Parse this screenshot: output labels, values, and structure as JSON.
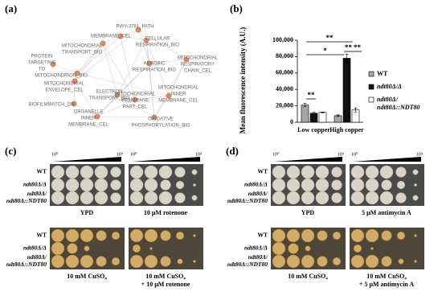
{
  "panel_a": {
    "label": "(a)",
    "nodes": [
      {
        "lines": [
          "PWY-3781_PATH"
        ]
      },
      {
        "lines": [
          "MEMBRANE_CEL"
        ]
      },
      {
        "lines": [
          "CELLULAR",
          "RESPIRATION_BIO"
        ]
      },
      {
        "lines": [
          "MITOCHONDRIAL",
          "TRANSPORT_BIO"
        ]
      },
      {
        "lines": [
          "PROTEIN",
          "TARGETING",
          "TO"
        ]
      },
      {
        "lines": [
          "MITOCHONDRION_BIO"
        ]
      },
      {
        "lines": [
          "AEROBIC",
          "RESPIRATION_BIO"
        ]
      },
      {
        "lines": [
          "MITOCHONDRIAL",
          "RESPIRATORY",
          "CHAIN_CEL"
        ]
      },
      {
        "lines": [
          "ELECTRON",
          "TRANSPORT_BIO"
        ]
      },
      {
        "lines": [
          "MITOCHONDRIAL",
          "ENVELOPE_CEL"
        ]
      },
      {
        "lines": [
          "BIOFILMMATCH_DN"
        ]
      },
      {
        "lines": [
          "MITOCHONDRIAL",
          "MEMBRANE",
          "PART_CEL"
        ]
      },
      {
        "lines": [
          "MITOCHONDRIAL",
          "INNER",
          "MEMBRANE_CEL"
        ]
      },
      {
        "lines": [
          "ORGANELLE",
          "INNER",
          "MEMBRANE_CEL"
        ]
      },
      {
        "lines": [
          "OXIDATIVE",
          "PHOSPHORYLATION_BIO"
        ]
      }
    ]
  },
  "chart_data": {
    "type": "bar",
    "panel_label": "(b)",
    "y_label": "Mean fluorescence intensity (A.U.)",
    "categories": [
      "Low copper",
      "High copper"
    ],
    "series": [
      {
        "name": "WT",
        "color": "#a6a6a6",
        "values": [
          21000,
          8000
        ],
        "errors": [
          2000,
          1000
        ]
      },
      {
        "name": "ndt80Δ/Δ",
        "color": "#111111",
        "values": [
          11000,
          78000
        ],
        "errors": [
          1000,
          5000
        ]
      },
      {
        "name": "ndt80Δ/\nndt80Δ::NDT80",
        "color": "#ffffff",
        "values": [
          12000,
          15000
        ],
        "errors": [
          500,
          2500
        ]
      }
    ],
    "ylim": [
      0,
      100000
    ],
    "yticks": [
      0,
      {
        "value": 20000,
        "label": "20,000"
      },
      {
        "value": 40000,
        "label": "40,000"
      },
      {
        "value": 60000,
        "label": "60,000"
      },
      {
        "value": 80000,
        "label": "80,000"
      },
      {
        "value": 100000,
        "label": "100,000"
      }
    ],
    "annotations": [
      "**",
      "*",
      "**",
      "**",
      "**"
    ]
  },
  "panel_c": {
    "label": "(c)",
    "dilution_start": "10⁰",
    "dilution_end": "10⁴",
    "strains": [
      [
        "WT"
      ],
      [
        "ndt80Δ/Δ"
      ],
      [
        "ndt80Δ/",
        "ndt80Δ::NDT80"
      ]
    ],
    "captions": [
      [
        "YPD"
      ],
      [
        "10 μM rotenone"
      ],
      [
        "10 mM CuSO₄"
      ],
      [
        "10 mM CuSO₄",
        "+ 10 μM rotenone"
      ]
    ]
  },
  "panel_d": {
    "label": "(d)",
    "dilution_start": "10⁰",
    "dilution_end": "10⁴",
    "strains": [
      [
        "WT"
      ],
      [
        "ndt80Δ/Δ"
      ],
      [
        "ndt80Δ/",
        "ndt80Δ::NDT80"
      ]
    ],
    "captions": [
      [
        "YPD"
      ],
      [
        "5 μM antimycin A"
      ],
      [
        "10 mM CuSO₄"
      ],
      [
        "10 mM CuSO₄",
        "+ 5 μM antimycin A"
      ]
    ]
  }
}
